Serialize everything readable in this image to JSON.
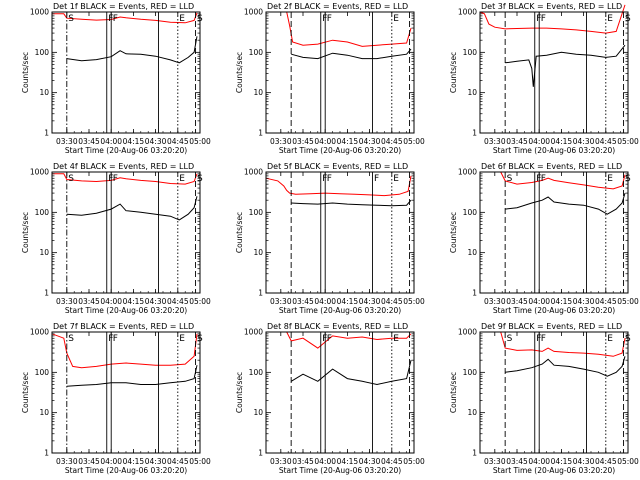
{
  "figure": {
    "xlabel": "Start Time (20-Aug-06 03:20:20)",
    "ylabel": "Counts/sec",
    "xticks": [
      "03:30",
      "03:45",
      "04:00",
      "04:15",
      "04:30",
      "04:45",
      "05:00"
    ],
    "yticks": [
      "1",
      "10",
      "100",
      "1000"
    ],
    "colors": {
      "events": "#000000",
      "lld": "#ff0000"
    }
  },
  "chart_data": [
    {
      "type": "line",
      "title": "Det 1f BLACK = Events, RED = LLD",
      "x_unit": "minutes after 03:20:20",
      "xlim": [
        0,
        100
      ],
      "ylim": [
        1,
        1000
      ],
      "yscale": "log",
      "markers": [
        {
          "x": 10,
          "style": "dashdot",
          "label": "S"
        },
        {
          "x": 37,
          "style": "solid",
          "label": "F"
        },
        {
          "x": 40,
          "style": "solid",
          "label": "F"
        },
        {
          "x": 72,
          "style": "solid",
          "label": ""
        },
        {
          "x": 85,
          "style": "dotted",
          "label": "E"
        },
        {
          "x": 97,
          "style": "dashed",
          "label": "S"
        }
      ],
      "series": [
        {
          "name": "Events",
          "color": "#000000",
          "x": [
            10,
            20,
            30,
            40,
            46,
            50,
            60,
            70,
            80,
            86,
            92,
            96,
            98
          ],
          "y": [
            70,
            62,
            66,
            78,
            110,
            92,
            90,
            80,
            65,
            55,
            75,
            100,
            250
          ]
        },
        {
          "name": "LLD",
          "color": "#ff0000",
          "x": [
            0,
            8,
            10,
            20,
            30,
            40,
            46,
            50,
            60,
            70,
            80,
            90,
            96,
            98
          ],
          "y": [
            900,
            900,
            700,
            660,
            630,
            650,
            750,
            720,
            660,
            620,
            560,
            540,
            620,
            950
          ]
        }
      ]
    },
    {
      "type": "line",
      "title": "Det 2f BLACK = Events, RED = LLD",
      "x_unit": "minutes after 03:20:20",
      "xlim": [
        0,
        100
      ],
      "ylim": [
        1,
        1000
      ],
      "yscale": "log",
      "markers": [
        {
          "x": 17,
          "style": "dashed",
          "label": ""
        },
        {
          "x": 37,
          "style": "solid",
          "label": "F"
        },
        {
          "x": 40,
          "style": "solid",
          "label": "F"
        },
        {
          "x": 72,
          "style": "solid",
          "label": ""
        },
        {
          "x": 85,
          "style": "dotted",
          "label": "E"
        },
        {
          "x": 97,
          "style": "dashed",
          "label": ""
        }
      ],
      "series": [
        {
          "name": "Events",
          "color": "#000000",
          "x": [
            17,
            25,
            35,
            45,
            55,
            65,
            75,
            85,
            95,
            98
          ],
          "y": [
            90,
            75,
            70,
            95,
            85,
            70,
            70,
            80,
            90,
            120
          ]
        },
        {
          "name": "LLD",
          "color": "#ff0000",
          "x": [
            14,
            16,
            18,
            25,
            35,
            45,
            55,
            65,
            75,
            85,
            95,
            98
          ],
          "y": [
            1000,
            450,
            180,
            150,
            160,
            200,
            180,
            140,
            150,
            160,
            170,
            400
          ]
        }
      ]
    },
    {
      "type": "line",
      "title": "Det 3f BLACK = Events, RED = LLD",
      "x_unit": "minutes after 03:20:20",
      "xlim": [
        0,
        100
      ],
      "ylim": [
        1,
        1000
      ],
      "yscale": "log",
      "markers": [
        {
          "x": 17,
          "style": "dashed",
          "label": ""
        },
        {
          "x": 37,
          "style": "solid",
          "label": "F"
        },
        {
          "x": 40,
          "style": "solid",
          "label": "F"
        },
        {
          "x": 72,
          "style": "solid",
          "label": ""
        },
        {
          "x": 85,
          "style": "dotted",
          "label": "E"
        },
        {
          "x": 97,
          "style": "dashed",
          "label": "S"
        }
      ],
      "series": [
        {
          "name": "Events",
          "color": "#000000",
          "x": [
            17,
            25,
            33,
            35,
            36,
            38,
            45,
            55,
            65,
            75,
            85,
            92,
            98
          ],
          "y": [
            55,
            60,
            65,
            40,
            14,
            80,
            85,
            100,
            90,
            85,
            75,
            80,
            150
          ]
        },
        {
          "name": "LLD",
          "color": "#ff0000",
          "x": [
            0,
            3,
            6,
            10,
            17,
            25,
            35,
            45,
            55,
            65,
            75,
            85,
            92,
            98
          ],
          "y": [
            1000,
            900,
            500,
            420,
            380,
            390,
            400,
            400,
            380,
            360,
            330,
            300,
            330,
            1500
          ]
        }
      ]
    },
    {
      "type": "line",
      "title": "Det 4f BLACK = Events, RED = LLD",
      "x_unit": "minutes after 03:20:20",
      "xlim": [
        0,
        100
      ],
      "ylim": [
        1,
        1000
      ],
      "yscale": "log",
      "markers": [
        {
          "x": 10,
          "style": "dashdot",
          "label": "S"
        },
        {
          "x": 37,
          "style": "solid",
          "label": "F"
        },
        {
          "x": 40,
          "style": "solid",
          "label": "F"
        },
        {
          "x": 72,
          "style": "solid",
          "label": ""
        },
        {
          "x": 85,
          "style": "dotted",
          "label": "E"
        },
        {
          "x": 97,
          "style": "dashed",
          "label": "S"
        }
      ],
      "series": [
        {
          "name": "Events",
          "color": "#000000",
          "x": [
            10,
            20,
            30,
            40,
            46,
            50,
            60,
            70,
            80,
            86,
            92,
            96,
            98
          ],
          "y": [
            90,
            85,
            95,
            120,
            160,
            110,
            100,
            90,
            80,
            65,
            90,
            130,
            250
          ]
        },
        {
          "name": "LLD",
          "color": "#ff0000",
          "x": [
            0,
            8,
            10,
            20,
            30,
            40,
            46,
            50,
            60,
            70,
            80,
            90,
            96,
            98
          ],
          "y": [
            900,
            900,
            650,
            600,
            580,
            620,
            720,
            680,
            620,
            580,
            520,
            500,
            580,
            900
          ]
        }
      ]
    },
    {
      "type": "line",
      "title": "Det 5f BLACK = Events, RED = LLD",
      "x_unit": "minutes after 03:20:20",
      "xlim": [
        0,
        100
      ],
      "ylim": [
        1,
        1000
      ],
      "yscale": "log",
      "markers": [
        {
          "x": 17,
          "style": "dashed",
          "label": ""
        },
        {
          "x": 37,
          "style": "solid",
          "label": "F"
        },
        {
          "x": 40,
          "style": "solid",
          "label": "F"
        },
        {
          "x": 72,
          "style": "solid",
          "label": "F"
        },
        {
          "x": 85,
          "style": "dotted",
          "label": "E"
        },
        {
          "x": 97,
          "style": "dashed",
          "label": ""
        }
      ],
      "series": [
        {
          "name": "Events",
          "color": "#000000",
          "x": [
            17,
            25,
            35,
            45,
            55,
            65,
            75,
            85,
            95,
            98
          ],
          "y": [
            170,
            165,
            160,
            170,
            160,
            155,
            150,
            145,
            150,
            200
          ]
        },
        {
          "name": "LLD",
          "color": "#ff0000",
          "x": [
            0,
            8,
            12,
            14,
            16,
            20,
            30,
            40,
            50,
            60,
            70,
            80,
            90,
            96,
            98
          ],
          "y": [
            700,
            600,
            450,
            350,
            300,
            280,
            290,
            300,
            290,
            280,
            270,
            260,
            280,
            330,
            800
          ]
        }
      ]
    },
    {
      "type": "line",
      "title": "Det 6f BLACK = Events, RED = LLD",
      "x_unit": "minutes after 03:20:20",
      "xlim": [
        0,
        100
      ],
      "ylim": [
        1,
        1000
      ],
      "yscale": "log",
      "markers": [
        {
          "x": 17,
          "style": "dashed",
          "label": "S"
        },
        {
          "x": 37,
          "style": "solid",
          "label": "F"
        },
        {
          "x": 40,
          "style": "solid",
          "label": "F"
        },
        {
          "x": 72,
          "style": "solid",
          "label": ""
        },
        {
          "x": 85,
          "style": "dotted",
          "label": "E"
        },
        {
          "x": 97,
          "style": "dashed",
          "label": "S"
        }
      ],
      "series": [
        {
          "name": "Events",
          "color": "#000000",
          "x": [
            17,
            25,
            35,
            42,
            46,
            50,
            60,
            70,
            80,
            86,
            92,
            96,
            98
          ],
          "y": [
            120,
            130,
            170,
            200,
            240,
            180,
            160,
            150,
            120,
            90,
            120,
            170,
            300
          ]
        },
        {
          "name": "LLD",
          "color": "#ff0000",
          "x": [
            14,
            17,
            25,
            35,
            42,
            46,
            50,
            60,
            70,
            80,
            90,
            96,
            98
          ],
          "y": [
            1000,
            600,
            500,
            550,
            620,
            700,
            620,
            540,
            480,
            420,
            380,
            450,
            850
          ]
        }
      ]
    },
    {
      "type": "line",
      "title": "Det 7f BLACK = Events, RED = LLD",
      "x_unit": "minutes after 03:20:20",
      "xlim": [
        0,
        100
      ],
      "ylim": [
        1,
        1000
      ],
      "yscale": "log",
      "markers": [
        {
          "x": 10,
          "style": "dashdot",
          "label": "S"
        },
        {
          "x": 37,
          "style": "solid",
          "label": "F"
        },
        {
          "x": 40,
          "style": "solid",
          "label": "F"
        },
        {
          "x": 72,
          "style": "solid",
          "label": ""
        },
        {
          "x": 85,
          "style": "dotted",
          "label": "E"
        },
        {
          "x": 97,
          "style": "dashed",
          "label": "S"
        }
      ],
      "series": [
        {
          "name": "Events",
          "color": "#000000",
          "x": [
            10,
            20,
            30,
            40,
            50,
            60,
            70,
            80,
            90,
            96,
            98
          ],
          "y": [
            45,
            48,
            50,
            55,
            55,
            50,
            50,
            55,
            60,
            70,
            150
          ]
        },
        {
          "name": "LLD",
          "color": "#ff0000",
          "x": [
            0,
            8,
            10,
            14,
            20,
            30,
            40,
            50,
            60,
            70,
            80,
            90,
            96,
            98
          ],
          "y": [
            900,
            700,
            300,
            140,
            130,
            140,
            160,
            170,
            160,
            150,
            150,
            160,
            250,
            900
          ]
        }
      ]
    },
    {
      "type": "line",
      "title": "Det 8f BLACK = Events, RED = LLD",
      "x_unit": "minutes after 03:20:20",
      "xlim": [
        0,
        100
      ],
      "ylim": [
        1,
        1000
      ],
      "yscale": "log",
      "markers": [
        {
          "x": 17,
          "style": "dashed",
          "label": ""
        },
        {
          "x": 37,
          "style": "solid",
          "label": "F"
        },
        {
          "x": 40,
          "style": "solid",
          "label": "F"
        },
        {
          "x": 72,
          "style": "solid",
          "label": ""
        },
        {
          "x": 85,
          "style": "dotted",
          "label": "E"
        },
        {
          "x": 97,
          "style": "dashed",
          "label": ""
        }
      ],
      "series": [
        {
          "name": "Events",
          "color": "#000000",
          "x": [
            17,
            25,
            35,
            45,
            55,
            65,
            75,
            85,
            95,
            98
          ],
          "y": [
            60,
            90,
            60,
            120,
            70,
            60,
            50,
            60,
            70,
            200
          ]
        },
        {
          "name": "LLD",
          "color": "#ff0000",
          "x": [
            14,
            17,
            25,
            35,
            45,
            55,
            65,
            75,
            85,
            95,
            98
          ],
          "y": [
            1000,
            600,
            700,
            400,
            800,
            700,
            750,
            650,
            700,
            700,
            900
          ]
        }
      ]
    },
    {
      "type": "line",
      "title": "Det 9f BLACK = Events, RED = LLD",
      "x_unit": "minutes after 03:20:20",
      "xlim": [
        0,
        100
      ],
      "ylim": [
        1,
        1000
      ],
      "yscale": "log",
      "markers": [
        {
          "x": 17,
          "style": "dashed",
          "label": "S"
        },
        {
          "x": 37,
          "style": "solid",
          "label": "F"
        },
        {
          "x": 40,
          "style": "solid",
          "label": "F"
        },
        {
          "x": 72,
          "style": "solid",
          "label": ""
        },
        {
          "x": 85,
          "style": "dotted",
          "label": "E"
        },
        {
          "x": 97,
          "style": "dashed",
          "label": "S"
        }
      ],
      "series": [
        {
          "name": "Events",
          "color": "#000000",
          "x": [
            17,
            25,
            35,
            42,
            46,
            50,
            60,
            70,
            80,
            86,
            92,
            96,
            98
          ],
          "y": [
            100,
            110,
            130,
            160,
            210,
            150,
            140,
            120,
            100,
            80,
            100,
            140,
            250
          ]
        },
        {
          "name": "LLD",
          "color": "#ff0000",
          "x": [
            14,
            17,
            25,
            35,
            42,
            46,
            50,
            60,
            70,
            80,
            90,
            96,
            98
          ],
          "y": [
            1000,
            400,
            350,
            360,
            330,
            400,
            330,
            310,
            300,
            280,
            250,
            300,
            700
          ]
        }
      ]
    }
  ]
}
